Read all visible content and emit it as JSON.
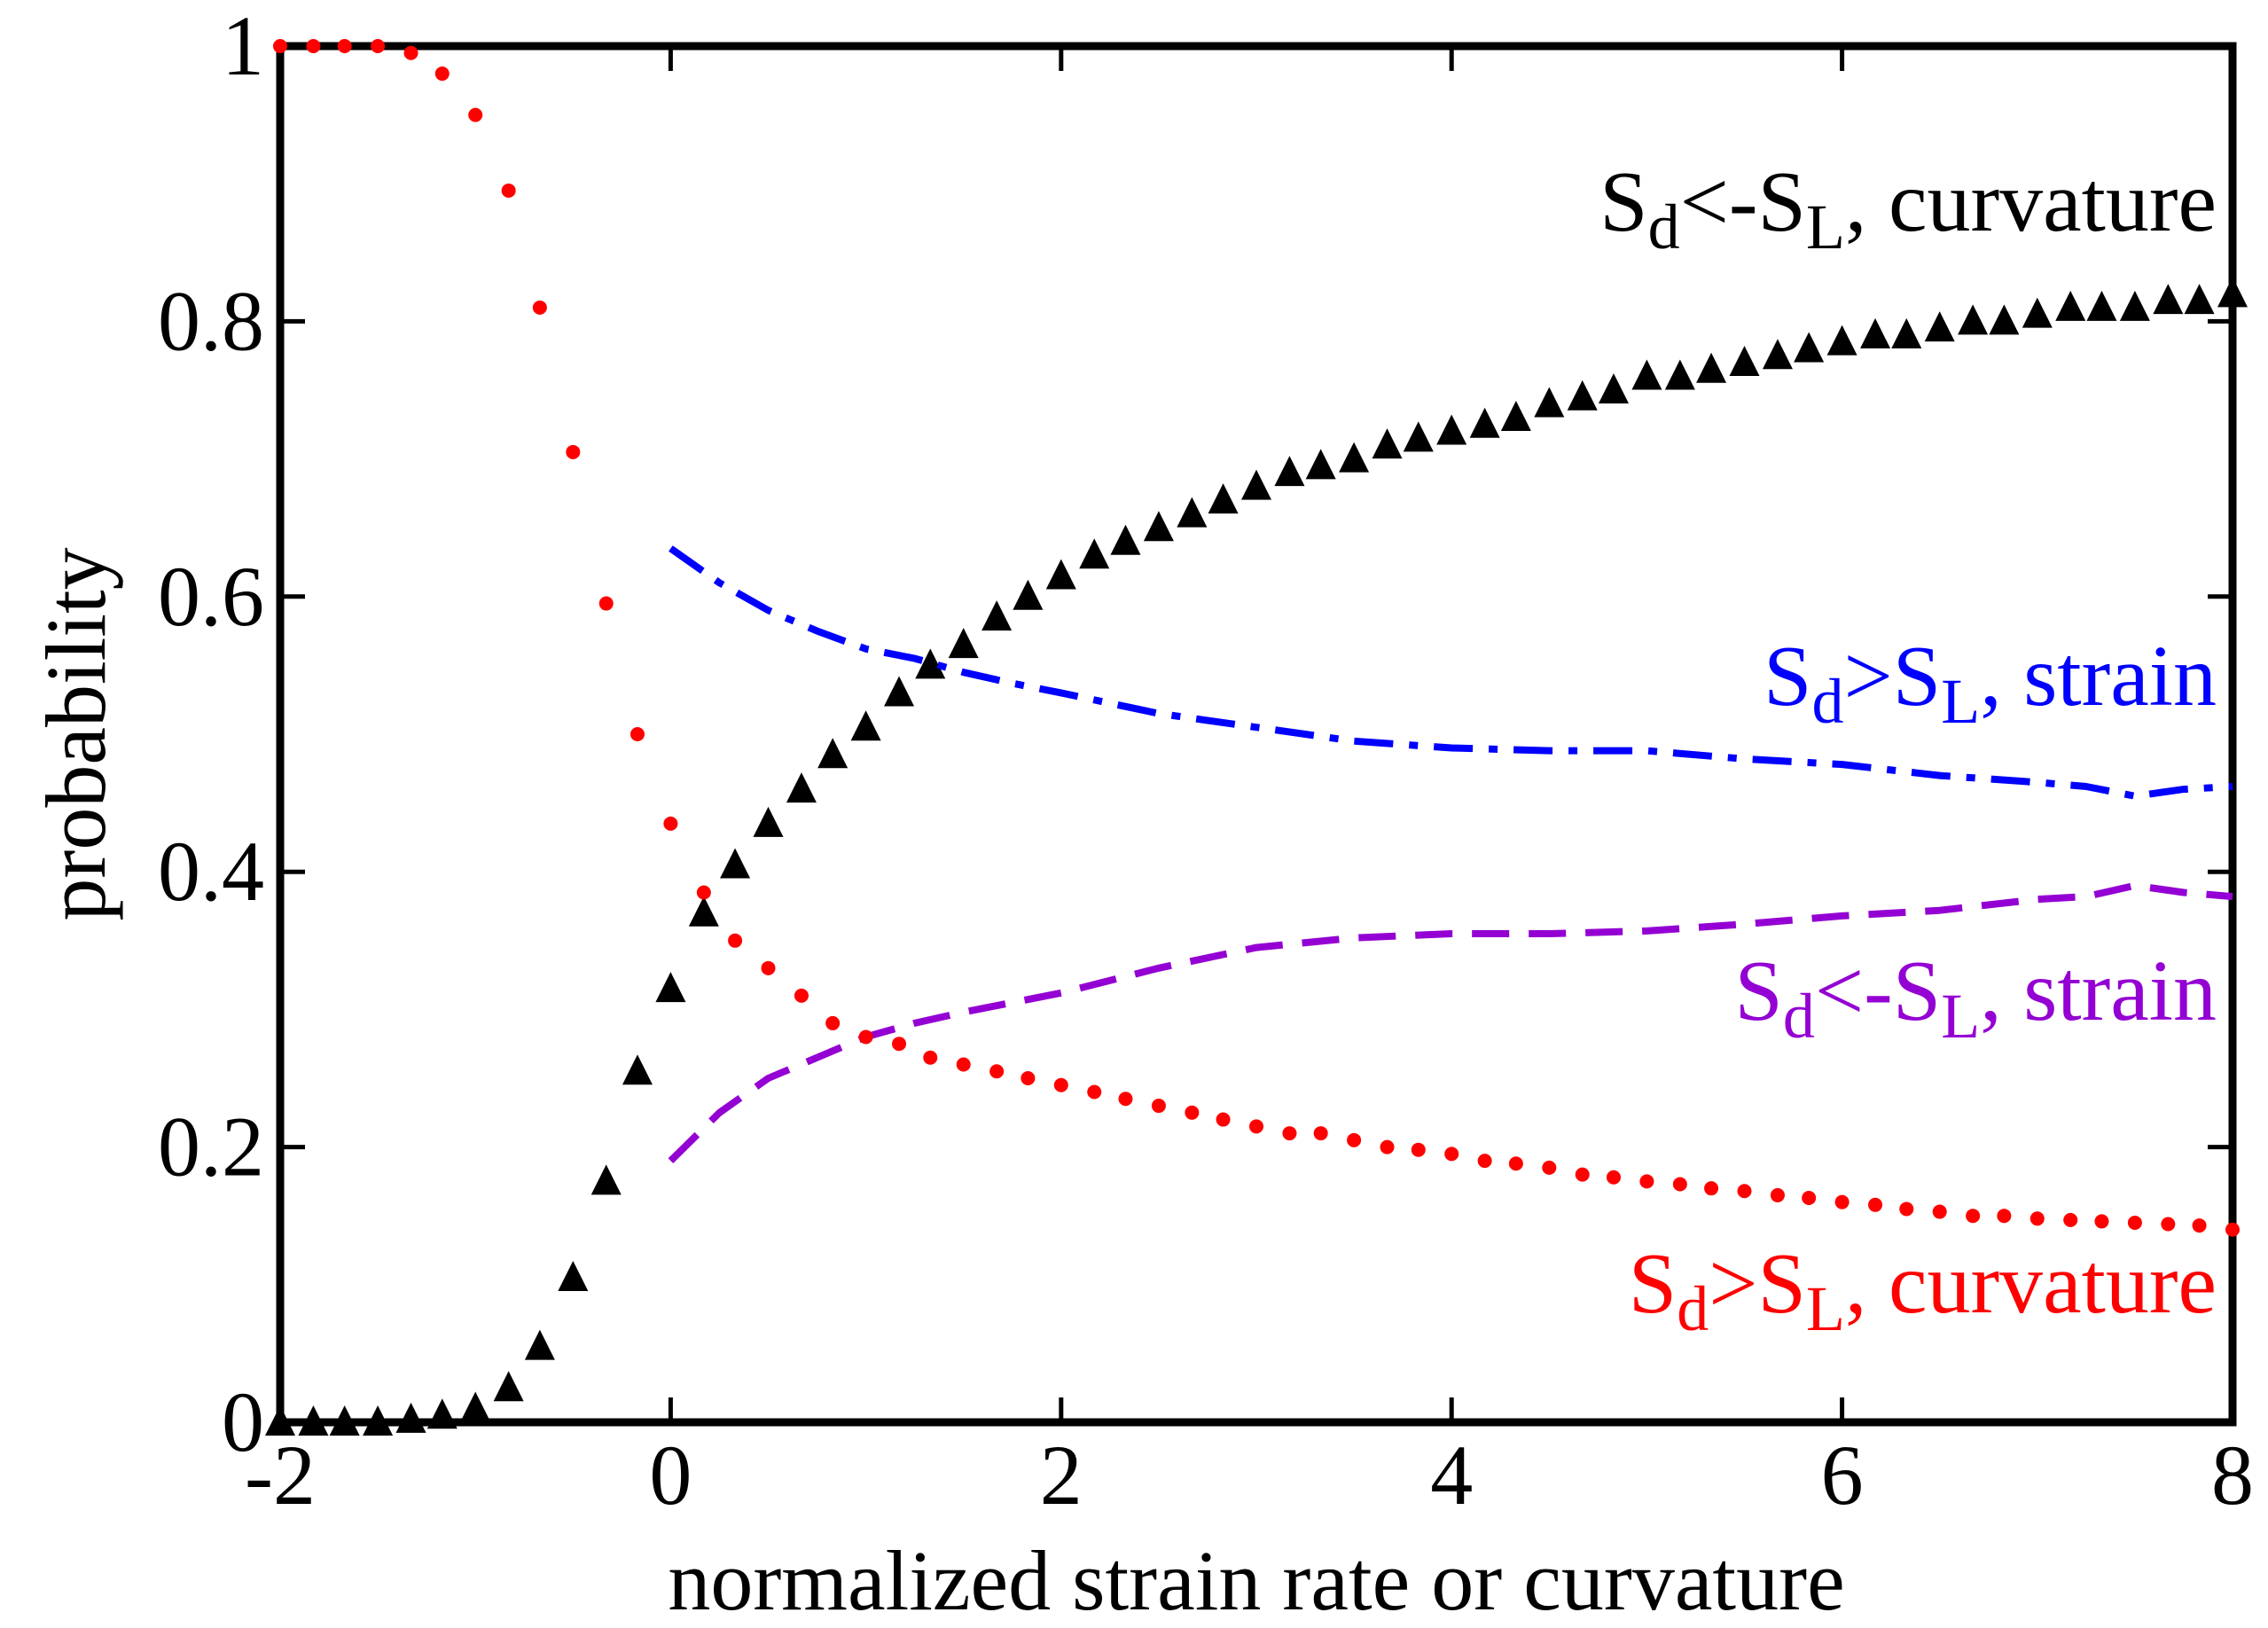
{
  "chart_data": {
    "type": "line",
    "title": "",
    "xlabel": "normalized strain rate or curvature",
    "ylabel": "probability",
    "xlim": [
      -2,
      8
    ],
    "ylim": [
      0,
      1
    ],
    "xticks": [
      "-2",
      "0",
      "2",
      "4",
      "6",
      "8"
    ],
    "xtick_values": [
      -2,
      0,
      2,
      4,
      6,
      8
    ],
    "yticks": [
      "0",
      "0.2",
      "0.4",
      "0.6",
      "0.8",
      "1"
    ],
    "ytick_values": [
      0,
      0.2,
      0.4,
      0.6,
      0.8,
      1
    ],
    "grid": false,
    "series": [
      {
        "name": "Sd<-SL, curvature",
        "label_main": "S",
        "label_sub": "d",
        "label_mid": "<-S",
        "label_sub2": "L",
        "label_tail": ", curvature",
        "color": "#000000",
        "style": "triangle-markers",
        "x": [
          -2.0,
          -1.83,
          -1.67,
          -1.5,
          -1.33,
          -1.17,
          -1.0,
          -0.83,
          -0.67,
          -0.5,
          -0.33,
          -0.17,
          0.0,
          0.17,
          0.33,
          0.5,
          0.67,
          0.83,
          1.0,
          1.17,
          1.33,
          1.5,
          1.67,
          1.83,
          2.0,
          2.17,
          2.33,
          2.5,
          2.67,
          2.83,
          3.0,
          3.17,
          3.33,
          3.5,
          3.67,
          3.83,
          4.0,
          4.17,
          4.33,
          4.5,
          4.67,
          4.83,
          5.0,
          5.17,
          5.33,
          5.5,
          5.67,
          5.83,
          6.0,
          6.17,
          6.33,
          6.5,
          6.67,
          6.83,
          7.0,
          7.17,
          7.33,
          7.5,
          7.67,
          7.83,
          8.0
        ],
        "y": [
          0.0,
          0.0,
          0.0,
          0.0,
          0.002,
          0.005,
          0.01,
          0.025,
          0.055,
          0.105,
          0.175,
          0.255,
          0.315,
          0.37,
          0.405,
          0.435,
          0.46,
          0.485,
          0.505,
          0.53,
          0.55,
          0.565,
          0.585,
          0.6,
          0.615,
          0.63,
          0.64,
          0.65,
          0.66,
          0.67,
          0.68,
          0.69,
          0.695,
          0.7,
          0.71,
          0.715,
          0.72,
          0.725,
          0.73,
          0.74,
          0.745,
          0.75,
          0.76,
          0.76,
          0.765,
          0.77,
          0.775,
          0.78,
          0.785,
          0.79,
          0.79,
          0.795,
          0.8,
          0.8,
          0.805,
          0.81,
          0.81,
          0.81,
          0.815,
          0.815,
          0.82
        ]
      },
      {
        "name": "Sd>SL, strain",
        "label_main": "S",
        "label_sub": "d",
        "label_mid": ">S",
        "label_sub2": "L",
        "label_tail": ", strain",
        "color": "#0000ff",
        "style": "dash-dot",
        "x": [
          0.0,
          0.25,
          0.5,
          0.75,
          1.0,
          1.25,
          1.5,
          1.75,
          2.0,
          2.5,
          3.0,
          3.5,
          4.0,
          4.5,
          5.0,
          5.5,
          6.0,
          6.5,
          7.0,
          7.25,
          7.5,
          7.75,
          8.0
        ],
        "y": [
          0.635,
          0.61,
          0.59,
          0.575,
          0.562,
          0.555,
          0.545,
          0.537,
          0.53,
          0.515,
          0.505,
          0.495,
          0.49,
          0.488,
          0.488,
          0.482,
          0.478,
          0.47,
          0.465,
          0.462,
          0.455,
          0.46,
          0.462
        ]
      },
      {
        "name": "Sd<-SL, strain",
        "label_main": "S",
        "label_sub": "d",
        "label_mid": "<-S",
        "label_sub2": "L",
        "label_tail": ", strain",
        "color": "#9400d3",
        "style": "dashed",
        "x": [
          0.0,
          0.25,
          0.5,
          0.75,
          1.0,
          1.25,
          1.5,
          1.75,
          2.0,
          2.5,
          3.0,
          3.5,
          4.0,
          4.5,
          5.0,
          5.5,
          6.0,
          6.5,
          7.0,
          7.25,
          7.5,
          7.75,
          8.0
        ],
        "y": [
          0.19,
          0.225,
          0.25,
          0.265,
          0.28,
          0.29,
          0.298,
          0.305,
          0.312,
          0.33,
          0.345,
          0.352,
          0.355,
          0.355,
          0.357,
          0.362,
          0.368,
          0.372,
          0.38,
          0.382,
          0.39,
          0.385,
          0.382
        ]
      },
      {
        "name": "Sd>SL, curvature",
        "label_main": "S",
        "label_sub": "d",
        "label_mid": ">S",
        "label_sub2": "L",
        "label_tail": ", curvature",
        "color": "#ff0000",
        "style": "dot-markers",
        "x": [
          -2.0,
          -1.83,
          -1.67,
          -1.5,
          -1.33,
          -1.17,
          -1.0,
          -0.83,
          -0.67,
          -0.5,
          -0.33,
          -0.17,
          0.0,
          0.17,
          0.33,
          0.5,
          0.67,
          0.83,
          1.0,
          1.17,
          1.33,
          1.5,
          1.67,
          1.83,
          2.0,
          2.17,
          2.33,
          2.5,
          2.67,
          2.83,
          3.0,
          3.17,
          3.33,
          3.5,
          3.67,
          3.83,
          4.0,
          4.17,
          4.33,
          4.5,
          4.67,
          4.83,
          5.0,
          5.17,
          5.33,
          5.5,
          5.67,
          5.83,
          6.0,
          6.17,
          6.33,
          6.5,
          6.67,
          6.83,
          7.0,
          7.17,
          7.33,
          7.5,
          7.67,
          7.83,
          8.0
        ],
        "y": [
          1.0,
          1.0,
          1.0,
          1.0,
          0.995,
          0.98,
          0.95,
          0.895,
          0.81,
          0.705,
          0.595,
          0.5,
          0.435,
          0.385,
          0.35,
          0.33,
          0.31,
          0.29,
          0.28,
          0.275,
          0.265,
          0.26,
          0.255,
          0.25,
          0.245,
          0.24,
          0.235,
          0.23,
          0.225,
          0.22,
          0.215,
          0.21,
          0.21,
          0.205,
          0.2,
          0.198,
          0.195,
          0.19,
          0.188,
          0.185,
          0.18,
          0.178,
          0.175,
          0.173,
          0.17,
          0.168,
          0.165,
          0.163,
          0.16,
          0.158,
          0.155,
          0.153,
          0.15,
          0.15,
          0.148,
          0.147,
          0.146,
          0.145,
          0.144,
          0.143,
          0.14
        ]
      }
    ]
  }
}
